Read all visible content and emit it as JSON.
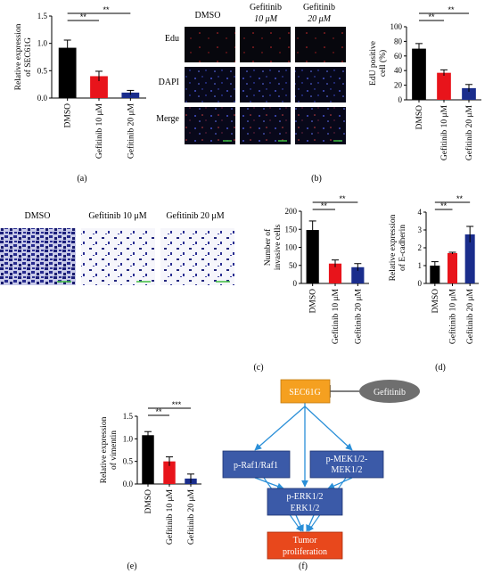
{
  "panels": {
    "a": {
      "letter": "(a)",
      "chart_data": {
        "type": "bar",
        "categories": [
          "DMSO",
          "Gefitinib 10 μM",
          "Gefitinib 20 μM"
        ],
        "values": [
          0.92,
          0.4,
          0.1
        ],
        "errors": [
          0.14,
          0.09,
          0.04
        ],
        "colors": [
          "#000000",
          "#e8141b",
          "#1a2d8c"
        ],
        "ylabel_line1": "Relative expression",
        "ylabel_line2": "of SEC61G",
        "ylim": [
          0,
          1.5
        ],
        "yticks": [
          0.0,
          0.5,
          1.0,
          1.5
        ],
        "significance": [
          "**",
          "**"
        ]
      }
    },
    "b": {
      "letter": "(b)",
      "columns": [
        "DMSO",
        "Gefitinib",
        "Gefitinib"
      ],
      "columns_line2": [
        "",
        "10 μM",
        "20 μM"
      ],
      "rows": [
        "Edu",
        "DAPI",
        "Merge"
      ],
      "chart_data": {
        "type": "bar",
        "categories": [
          "DMSO",
          "Gefitinib 10 μM",
          "Gefitinib 20 μM"
        ],
        "values": [
          70,
          37,
          16
        ],
        "errors": [
          7,
          4,
          5
        ],
        "colors": [
          "#000000",
          "#e8141b",
          "#1a2d8c"
        ],
        "ylabel_line1": "EdU positive",
        "ylabel_line2": "cell (%)",
        "ylim": [
          0,
          100
        ],
        "yticks": [
          0,
          20,
          40,
          60,
          80,
          100
        ],
        "significance": [
          "**",
          "**"
        ]
      }
    },
    "c": {
      "letter": "(c)",
      "images": [
        "DMSO",
        "Gefitinib 10 μM",
        "Gefitinib 20 μM"
      ],
      "chart_data": {
        "type": "bar",
        "categories": [
          "DMSO",
          "Gefitinib 10 μM",
          "Gefitinib 20 μM"
        ],
        "values": [
          148,
          55,
          45
        ],
        "errors": [
          25,
          10,
          10
        ],
        "colors": [
          "#000000",
          "#e8141b",
          "#1a2d8c"
        ],
        "ylabel_line1": "Number of",
        "ylabel_line2": "invasive cells",
        "ylim": [
          0,
          200
        ],
        "yticks": [
          0,
          50,
          100,
          150,
          200
        ],
        "significance": [
          "**",
          "**"
        ]
      }
    },
    "d": {
      "letter": "(d)",
      "chart_data": {
        "type": "bar",
        "categories": [
          "DMSO",
          "Gefitinib 10 μM",
          "Gefitinib 20 μM"
        ],
        "values": [
          1.0,
          1.7,
          2.75
        ],
        "errors": [
          0.22,
          0.05,
          0.45
        ],
        "colors": [
          "#000000",
          "#e8141b",
          "#1a2d8c"
        ],
        "ylabel_line1": "Relative expression",
        "ylabel_line2": "of E-cadherin",
        "ylim": [
          0,
          4
        ],
        "yticks": [
          0,
          1,
          2,
          3,
          4
        ],
        "significance": [
          "**",
          "**"
        ]
      }
    },
    "e": {
      "letter": "(e)",
      "chart_data": {
        "type": "bar",
        "categories": [
          "DMSO",
          "Gefitinib 10 μM",
          "Gefitinib 20 μM"
        ],
        "values": [
          1.08,
          0.5,
          0.12
        ],
        "errors": [
          0.08,
          0.1,
          0.1
        ],
        "colors": [
          "#000000",
          "#e8141b",
          "#1a2d8c"
        ],
        "ylabel_line1": "Relative expression",
        "ylabel_line2": "of vimentin",
        "ylim": [
          0,
          1.5
        ],
        "yticks": [
          0.0,
          0.5,
          1.0,
          1.5
        ],
        "significance": [
          "**",
          "***"
        ]
      }
    },
    "f": {
      "letter": "(f)",
      "nodes": {
        "sec61g": "SEC61G",
        "gefitinib": "Gefitinib",
        "raf": "p-Raf1/Raf1",
        "mek1": "p-MEK1/2-",
        "mek2": "MEK1/2",
        "erk1": "p-ERK1/2",
        "erk2": "ERK1/2",
        "tumor1": "Tumor",
        "tumor2": "proliferation"
      },
      "colors": {
        "sec61g": "#f5a020",
        "gefitinib": "#6f6f6f",
        "kinase": "#3b5aa8",
        "tumor": "#e8481c",
        "arrow": "#2a8fd8"
      }
    }
  }
}
